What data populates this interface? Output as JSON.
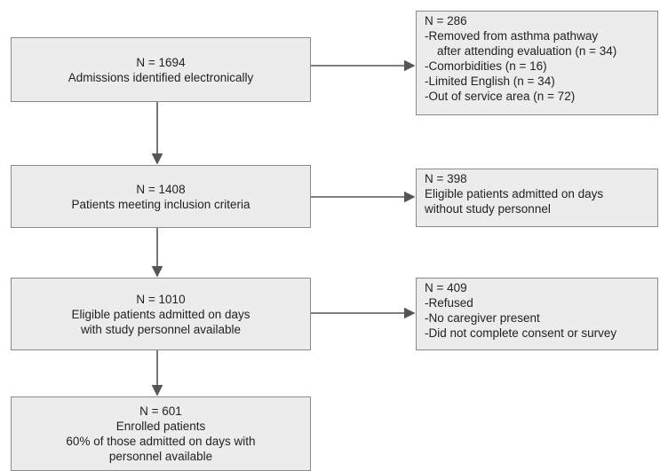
{
  "nodes": [
    {
      "count": "N = 1694",
      "lines": [
        "Admissions identified electronically"
      ]
    },
    {
      "count": "N = 1408",
      "lines": [
        "Patients meeting inclusion criteria"
      ]
    },
    {
      "count": "N = 1010",
      "lines": [
        "Eligible patients admitted on days",
        "with study personnel available"
      ]
    },
    {
      "count": "N = 601",
      "lines": [
        "Enrolled patients",
        "60% of those admitted on days with",
        "personnel available"
      ]
    }
  ],
  "exclusions": [
    {
      "count": "N = 286",
      "lines": [
        "-Removed from asthma pathway",
        "after attending evaluation (n = 34)",
        "-Comorbidities (n = 16)",
        "-Limited English (n = 34)",
        "-Out of service area (n = 72)"
      ]
    },
    {
      "count": "N = 398",
      "lines": [
        "Eligible patients admitted on days",
        "without study personnel"
      ]
    },
    {
      "count": "N = 409",
      "lines": [
        "-Refused",
        "-No caregiver present",
        "-Did not complete consent or survey"
      ]
    }
  ]
}
